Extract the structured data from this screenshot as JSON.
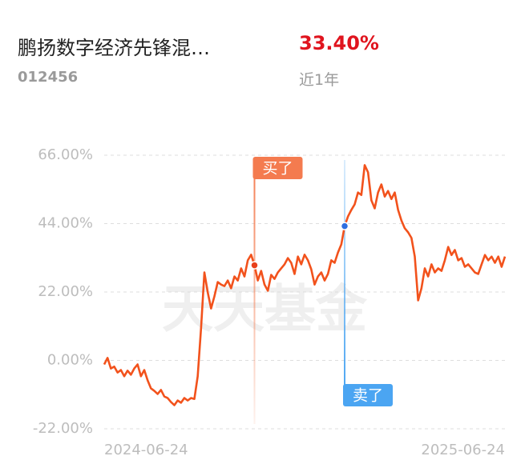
{
  "header": {
    "name": "鹏扬数字经济先锋混…",
    "code": "012456",
    "return": "33.40%",
    "period": "近1年"
  },
  "watermark": "天天基金",
  "chart_data": {
    "type": "line",
    "categories": [
      "2024-06-24",
      null,
      null,
      null,
      null,
      null,
      null,
      null,
      null,
      null,
      null,
      null,
      null,
      null,
      null,
      null,
      null,
      null,
      null,
      null,
      null,
      null,
      null,
      null,
      null,
      null,
      null,
      null,
      null,
      null,
      null,
      null,
      null,
      null,
      null,
      null,
      null,
      null,
      null,
      null,
      null,
      null,
      null,
      null,
      null,
      null,
      null,
      null,
      null,
      null,
      null,
      null,
      null,
      null,
      null,
      null,
      null,
      null,
      null,
      null,
      null,
      null,
      null,
      null,
      null,
      null,
      null,
      null,
      null,
      null,
      null,
      null,
      null,
      null,
      null,
      null,
      null,
      null,
      null,
      null,
      null,
      null,
      null,
      null,
      null,
      null,
      null,
      null,
      null,
      null,
      null,
      null,
      null,
      null,
      null,
      null,
      null,
      null,
      null,
      null,
      null,
      null,
      null,
      null,
      null,
      null,
      null,
      null,
      null,
      null,
      null,
      null,
      null,
      null,
      null,
      null,
      null,
      null,
      null,
      null,
      "2025-06-24"
    ],
    "series": [
      {
        "color": "#f2521c",
        "values": [
          -1.3,
          0.8,
          -2.6,
          -2,
          -3.9,
          -3.1,
          -5.1,
          -3.3,
          -4.6,
          -2.6,
          -1.3,
          -5.1,
          -3.1,
          -6.4,
          -9.0,
          -9.8,
          -10.8,
          -9.5,
          -11.6,
          -12.1,
          -13.4,
          -14.4,
          -12.9,
          -13.6,
          -12.1,
          -12.9,
          -12.1,
          -12.4,
          -5.1,
          10.3,
          28.3,
          21.9,
          16.7,
          20.6,
          25.2,
          24.4,
          23.9,
          25.7,
          23.2,
          27.0,
          25.7,
          29.6,
          27.0,
          32.2,
          34.0,
          30.6,
          25.7,
          28.8,
          24.4,
          22.4,
          27.5,
          26.2,
          28.3,
          29.6,
          30.9,
          32.9,
          31.4,
          27.8,
          33.4,
          30.9,
          34.0,
          32.2,
          29.3,
          24.4,
          27.0,
          28.3,
          25.7,
          27.8,
          32.2,
          31.4,
          34.7,
          37.3,
          43.2,
          46.3,
          48.4,
          50.2,
          54.0,
          53.2,
          62.8,
          60.5,
          51.5,
          48.9,
          54.0,
          56.6,
          52.7,
          54.5,
          51.9,
          54.0,
          48.4,
          45.0,
          42.5,
          41.2,
          39.4,
          33.4,
          19.3,
          23.2,
          29.6,
          27.0,
          30.9,
          28.3,
          29.6,
          28.8,
          32.2,
          36.5,
          33.9,
          35.5,
          32.2,
          32.9,
          30.1,
          30.9,
          29.6,
          28.3,
          27.8,
          30.9,
          33.9,
          32.2,
          33.4,
          31.4,
          33.4,
          30.1,
          33.4
        ]
      }
    ],
    "ylim": [
      -22,
      66
    ],
    "yticks": [
      {
        "value": 66,
        "label": "66.00%"
      },
      {
        "value": 44,
        "label": "44.00%"
      },
      {
        "value": 22,
        "label": "22.00%"
      },
      {
        "value": 0,
        "label": "0.00%"
      },
      {
        "value": -22,
        "label": "-22.00%"
      }
    ],
    "grid": true,
    "markers": [
      {
        "label": "买了",
        "index": 45,
        "color": "#f47b4f"
      },
      {
        "label": "卖了",
        "index": 72,
        "color": "#4ba5f2"
      }
    ]
  }
}
